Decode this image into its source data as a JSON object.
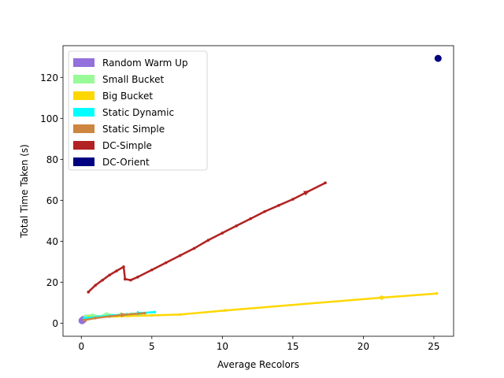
{
  "chart_data": {
    "type": "line",
    "title": "",
    "xlabel": "Average Recolors",
    "ylabel": "Total Time Taken (s)",
    "xlim": [
      -1.3,
      26.4
    ],
    "ylim": [
      -6.4,
      135.5
    ],
    "xticks": [
      0,
      5,
      10,
      15,
      20,
      25
    ],
    "yticks": [
      0,
      20,
      40,
      60,
      80,
      100,
      120
    ],
    "grid": false,
    "legend_position": "top-left",
    "series": [
      {
        "name": "Random Warm Up",
        "color": "#9370DB",
        "style": "points",
        "x": [
          0.05,
          0.1,
          0.15
        ],
        "y": [
          1.2,
          1.5,
          1.8
        ]
      },
      {
        "name": "Small Bucket",
        "color": "#98FB98",
        "style": "line",
        "x": [
          0.3,
          0.8,
          1.3,
          1.8,
          2.3,
          2.8,
          3.3,
          3.8,
          4.3
        ],
        "y": [
          3.6,
          4.0,
          3.3,
          4.6,
          3.8,
          4.3,
          3.6,
          4.1,
          3.9
        ]
      },
      {
        "name": "Big Bucket",
        "color": "#FFD700",
        "style": "line",
        "x": [
          0.5,
          2.5,
          5.0,
          7.0,
          10.2,
          21.2,
          25.2
        ],
        "y": [
          3.0,
          3.3,
          3.8,
          4.2,
          6.2,
          12.4,
          14.5
        ]
      },
      {
        "name": "Static Dynamic",
        "color": "#00FFFF",
        "style": "line",
        "x": [
          0.2,
          1.2,
          2.2,
          3.2,
          4.2,
          5.2
        ],
        "y": [
          2.5,
          3.1,
          3.8,
          4.3,
          4.9,
          5.4
        ]
      },
      {
        "name": "Static Simple",
        "color": "#CD853F",
        "style": "line",
        "x": [
          0.2,
          1.0,
          2.0,
          3.0,
          4.5
        ],
        "y": [
          1.5,
          2.5,
          3.3,
          4.1,
          4.9
        ]
      },
      {
        "name": "DC-Simple",
        "color": "#B22222",
        "style": "line",
        "x": [
          0.5,
          1.0,
          1.5,
          2.0,
          2.5,
          3.0,
          3.1,
          3.5,
          4.0,
          5.0,
          6.0,
          7.0,
          8.0,
          9.0,
          10.0,
          11.0,
          12.0,
          13.0,
          14.0,
          15.0,
          16.0,
          17.3
        ],
        "y": [
          15.2,
          18.5,
          21.0,
          23.5,
          25.5,
          27.5,
          21.5,
          21.0,
          22.5,
          26.0,
          29.5,
          33.0,
          36.5,
          40.5,
          44.0,
          47.5,
          51.0,
          54.5,
          57.5,
          60.5,
          64.0,
          68.5
        ]
      },
      {
        "name": "DC-Orient",
        "color": "#000080",
        "style": "points",
        "x": [
          25.3
        ],
        "y": [
          129.3
        ]
      }
    ]
  }
}
